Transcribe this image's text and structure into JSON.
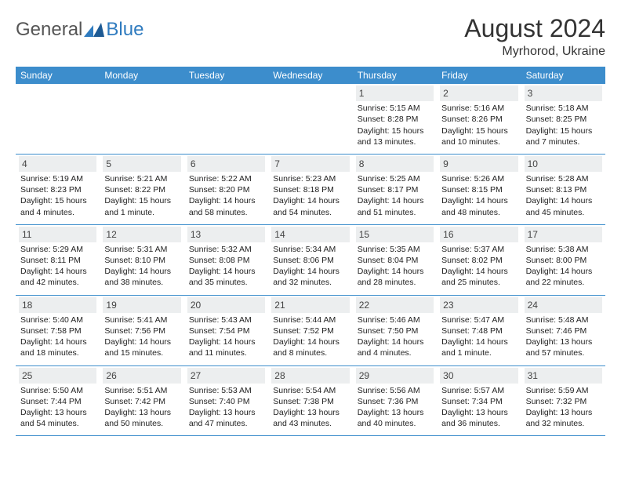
{
  "brand": {
    "general": "General",
    "blue": "Blue"
  },
  "title": "August 2024",
  "location": "Myrhorod, Ukraine",
  "colors": {
    "header_bg": "#3c8dcc",
    "header_fg": "#ffffff",
    "daynum_bg": "#eceeef",
    "brand_blue": "#2f7bbf",
    "brand_gray": "#555555"
  },
  "dayHeaders": [
    "Sunday",
    "Monday",
    "Tuesday",
    "Wednesday",
    "Thursday",
    "Friday",
    "Saturday"
  ],
  "weeks": [
    [
      {
        "n": "",
        "empty": true
      },
      {
        "n": "",
        "empty": true
      },
      {
        "n": "",
        "empty": true
      },
      {
        "n": "",
        "empty": true
      },
      {
        "n": "1",
        "sr": "5:15 AM",
        "ss": "8:28 PM",
        "dl": "15 hours and 13 minutes."
      },
      {
        "n": "2",
        "sr": "5:16 AM",
        "ss": "8:26 PM",
        "dl": "15 hours and 10 minutes."
      },
      {
        "n": "3",
        "sr": "5:18 AM",
        "ss": "8:25 PM",
        "dl": "15 hours and 7 minutes."
      }
    ],
    [
      {
        "n": "4",
        "sr": "5:19 AM",
        "ss": "8:23 PM",
        "dl": "15 hours and 4 minutes."
      },
      {
        "n": "5",
        "sr": "5:21 AM",
        "ss": "8:22 PM",
        "dl": "15 hours and 1 minute."
      },
      {
        "n": "6",
        "sr": "5:22 AM",
        "ss": "8:20 PM",
        "dl": "14 hours and 58 minutes."
      },
      {
        "n": "7",
        "sr": "5:23 AM",
        "ss": "8:18 PM",
        "dl": "14 hours and 54 minutes."
      },
      {
        "n": "8",
        "sr": "5:25 AM",
        "ss": "8:17 PM",
        "dl": "14 hours and 51 minutes."
      },
      {
        "n": "9",
        "sr": "5:26 AM",
        "ss": "8:15 PM",
        "dl": "14 hours and 48 minutes."
      },
      {
        "n": "10",
        "sr": "5:28 AM",
        "ss": "8:13 PM",
        "dl": "14 hours and 45 minutes."
      }
    ],
    [
      {
        "n": "11",
        "sr": "5:29 AM",
        "ss": "8:11 PM",
        "dl": "14 hours and 42 minutes."
      },
      {
        "n": "12",
        "sr": "5:31 AM",
        "ss": "8:10 PM",
        "dl": "14 hours and 38 minutes."
      },
      {
        "n": "13",
        "sr": "5:32 AM",
        "ss": "8:08 PM",
        "dl": "14 hours and 35 minutes."
      },
      {
        "n": "14",
        "sr": "5:34 AM",
        "ss": "8:06 PM",
        "dl": "14 hours and 32 minutes."
      },
      {
        "n": "15",
        "sr": "5:35 AM",
        "ss": "8:04 PM",
        "dl": "14 hours and 28 minutes."
      },
      {
        "n": "16",
        "sr": "5:37 AM",
        "ss": "8:02 PM",
        "dl": "14 hours and 25 minutes."
      },
      {
        "n": "17",
        "sr": "5:38 AM",
        "ss": "8:00 PM",
        "dl": "14 hours and 22 minutes."
      }
    ],
    [
      {
        "n": "18",
        "sr": "5:40 AM",
        "ss": "7:58 PM",
        "dl": "14 hours and 18 minutes."
      },
      {
        "n": "19",
        "sr": "5:41 AM",
        "ss": "7:56 PM",
        "dl": "14 hours and 15 minutes."
      },
      {
        "n": "20",
        "sr": "5:43 AM",
        "ss": "7:54 PM",
        "dl": "14 hours and 11 minutes."
      },
      {
        "n": "21",
        "sr": "5:44 AM",
        "ss": "7:52 PM",
        "dl": "14 hours and 8 minutes."
      },
      {
        "n": "22",
        "sr": "5:46 AM",
        "ss": "7:50 PM",
        "dl": "14 hours and 4 minutes."
      },
      {
        "n": "23",
        "sr": "5:47 AM",
        "ss": "7:48 PM",
        "dl": "14 hours and 1 minute."
      },
      {
        "n": "24",
        "sr": "5:48 AM",
        "ss": "7:46 PM",
        "dl": "13 hours and 57 minutes."
      }
    ],
    [
      {
        "n": "25",
        "sr": "5:50 AM",
        "ss": "7:44 PM",
        "dl": "13 hours and 54 minutes."
      },
      {
        "n": "26",
        "sr": "5:51 AM",
        "ss": "7:42 PM",
        "dl": "13 hours and 50 minutes."
      },
      {
        "n": "27",
        "sr": "5:53 AM",
        "ss": "7:40 PM",
        "dl": "13 hours and 47 minutes."
      },
      {
        "n": "28",
        "sr": "5:54 AM",
        "ss": "7:38 PM",
        "dl": "13 hours and 43 minutes."
      },
      {
        "n": "29",
        "sr": "5:56 AM",
        "ss": "7:36 PM",
        "dl": "13 hours and 40 minutes."
      },
      {
        "n": "30",
        "sr": "5:57 AM",
        "ss": "7:34 PM",
        "dl": "13 hours and 36 minutes."
      },
      {
        "n": "31",
        "sr": "5:59 AM",
        "ss": "7:32 PM",
        "dl": "13 hours and 32 minutes."
      }
    ]
  ],
  "labels": {
    "sunrise": "Sunrise:",
    "sunset": "Sunset:",
    "daylight": "Daylight:"
  }
}
